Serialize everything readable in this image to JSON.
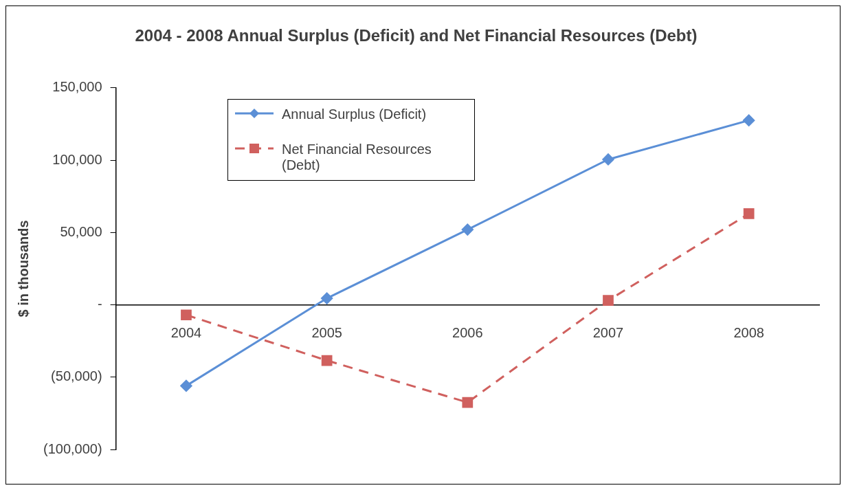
{
  "chart_data": {
    "type": "line",
    "title": "2004 - 2008 Annual Surplus (Deficit) and Net Financial Resources (Debt)",
    "ylabel": "$ in thousands",
    "categories": [
      "2004",
      "2005",
      "2006",
      "2007",
      "2008"
    ],
    "series": [
      {
        "name": "Annual Surplus (Deficit)",
        "color": "#5b8fd6",
        "marker": "diamond",
        "line_style": "solid",
        "values": [
          -56000,
          4500,
          52000,
          100500,
          127500
        ]
      },
      {
        "name": "Net Financial Resources (Debt)",
        "color": "#d0605e",
        "marker": "square",
        "line_style": "dashed",
        "values": [
          -7000,
          -38500,
          -67500,
          3000,
          63000
        ]
      }
    ],
    "ylim": [
      -100000,
      150000
    ],
    "yticks": [
      {
        "value": -100000,
        "label": "(100,000)"
      },
      {
        "value": -50000,
        "label": "(50,000)"
      },
      {
        "value": 0,
        "label": "-"
      },
      {
        "value": 50000,
        "label": "50,000"
      },
      {
        "value": 100000,
        "label": "100,000"
      },
      {
        "value": 150000,
        "label": "150,000"
      }
    ],
    "grid": false,
    "legend": "top left"
  }
}
